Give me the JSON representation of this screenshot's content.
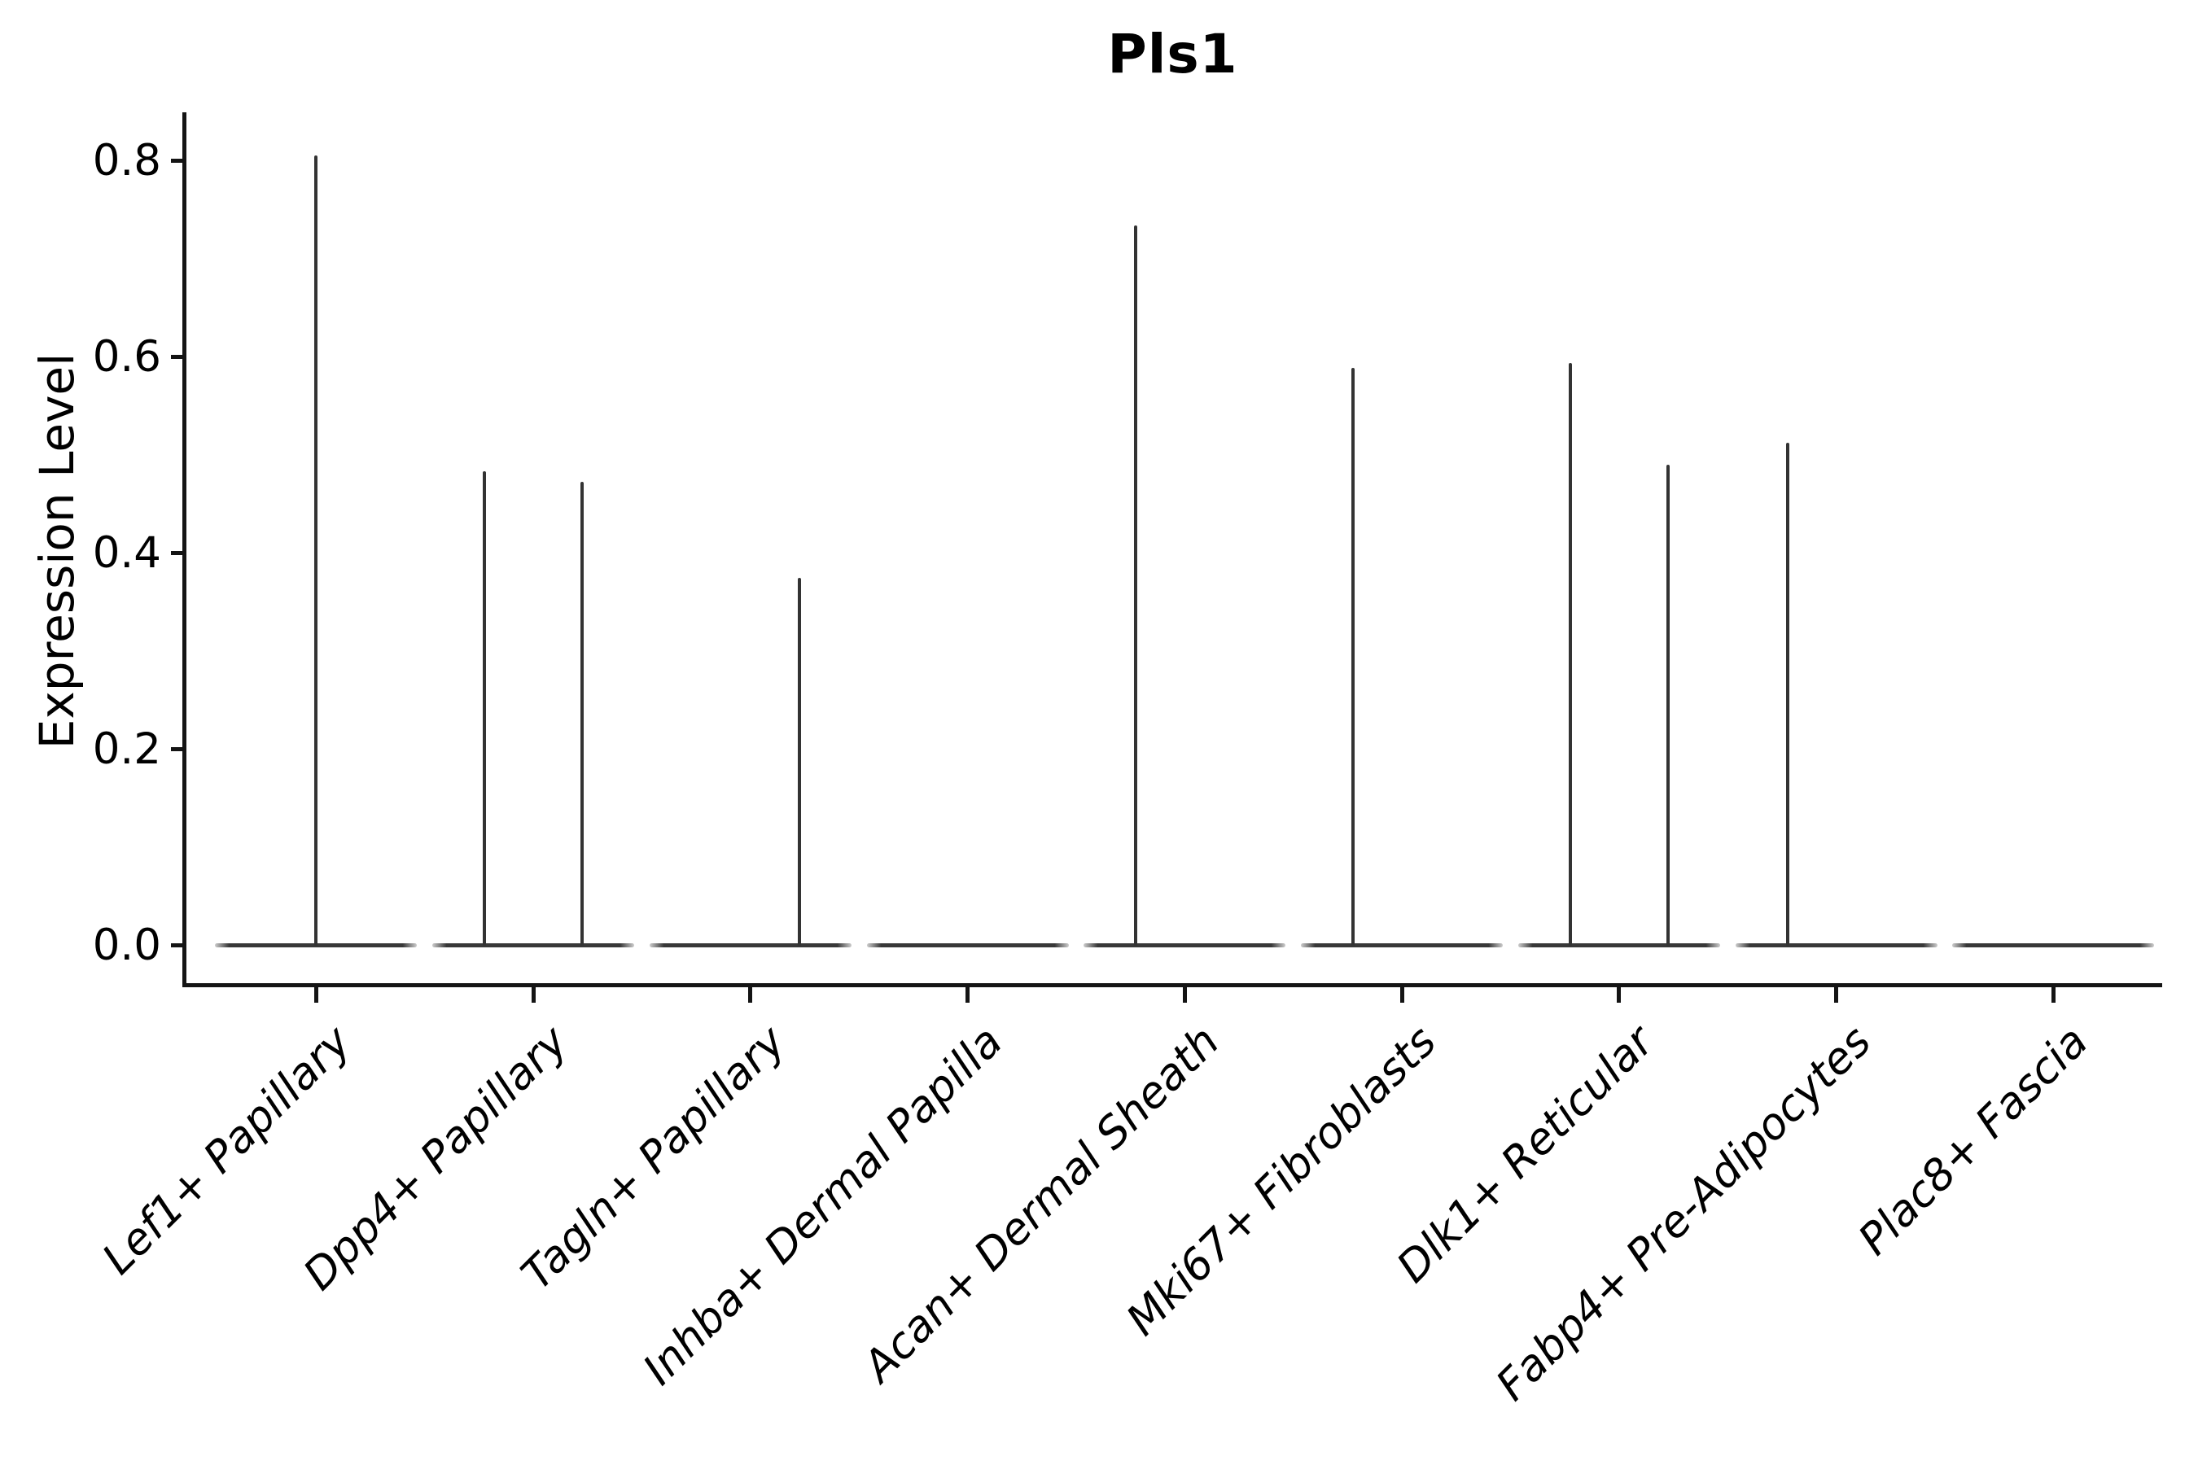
{
  "title": "Pls1",
  "axes": {
    "ylabel": "Expression Level",
    "xlabel": ""
  },
  "chart_data": {
    "type": "violin",
    "title": "Pls1",
    "ylabel": "Expression Level",
    "xlabel": "",
    "ylim": [
      0,
      0.85
    ],
    "yticks": [
      0.0,
      0.2,
      0.4,
      0.6,
      0.8
    ],
    "ytick_labels": [
      "0.0",
      "0.2",
      "0.4",
      "0.6",
      "0.8"
    ],
    "grid": false,
    "legend": "none",
    "categories": [
      "Lef1+ Papillary",
      "Dpp4+ Papillary",
      "Tagln+ Papillary",
      "Inhba+ Dermal Papilla",
      "Acan+ Dermal Sheath",
      "Mki67+ Fibroblasts",
      "Dlk1+ Reticular",
      "Fabp4+ Pre-Adipocytes",
      "Plac8+ Fascia"
    ],
    "violins": [
      {
        "category": "Lef1+ Papillary",
        "baseline_at_zero": true,
        "spikes": [
          {
            "dx": 0,
            "max": 0.805
          }
        ]
      },
      {
        "category": "Dpp4+ Papillary",
        "baseline_at_zero": true,
        "spikes": [
          {
            "dx": -60,
            "max": 0.483
          },
          {
            "dx": 60,
            "max": 0.472
          }
        ]
      },
      {
        "category": "Tagln+ Papillary",
        "baseline_at_zero": true,
        "spikes": [
          {
            "dx": 60,
            "max": 0.374
          }
        ]
      },
      {
        "category": "Inhba+ Dermal Papilla",
        "baseline_at_zero": true,
        "spikes": []
      },
      {
        "category": "Acan+ Dermal Sheath",
        "baseline_at_zero": true,
        "spikes": [
          {
            "dx": -60,
            "max": 0.734
          }
        ]
      },
      {
        "category": "Mki67+ Fibroblasts",
        "baseline_at_zero": true,
        "spikes": [
          {
            "dx": -60,
            "max": 0.588
          }
        ]
      },
      {
        "category": "Dlk1+ Reticular",
        "baseline_at_zero": true,
        "spikes": [
          {
            "dx": -60,
            "max": 0.593
          },
          {
            "dx": 60,
            "max": 0.49
          }
        ]
      },
      {
        "category": "Fabp4+ Pre-Adipocytes",
        "baseline_at_zero": true,
        "spikes": [
          {
            "dx": -60,
            "max": 0.512
          }
        ]
      },
      {
        "category": "Plac8+ Fascia",
        "baseline_at_zero": true,
        "spikes": []
      }
    ],
    "colors": {
      "violin_line": "#333333",
      "axis": "#141414",
      "text": "#000000",
      "background": "#ffffff"
    }
  }
}
